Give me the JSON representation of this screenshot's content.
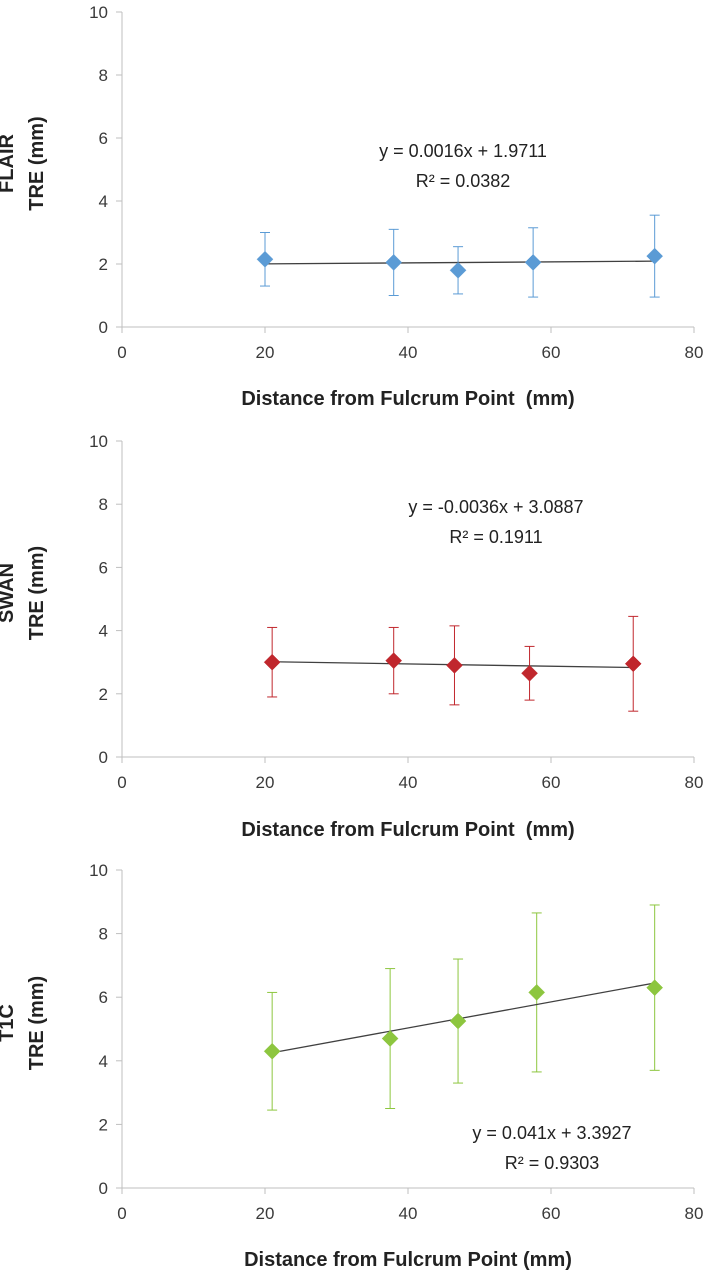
{
  "chart_data": [
    {
      "type": "scatter",
      "ylabel_lines": [
        "FLAIR",
        "TRE (mm)"
      ],
      "xlabel": "Distance from Fulcrum Point  (mm)",
      "xlim": [
        0,
        80
      ],
      "ylim": [
        0,
        10
      ],
      "xticks": [
        0,
        20,
        40,
        60,
        80
      ],
      "yticks": [
        0,
        2,
        4,
        6,
        8,
        10
      ],
      "color": "#5b9bd5",
      "points": [
        {
          "x": 20,
          "y": 2.15,
          "err": 0.85
        },
        {
          "x": 38,
          "y": 2.05,
          "err": 1.05
        },
        {
          "x": 47,
          "y": 1.8,
          "err": 0.75
        },
        {
          "x": 57.5,
          "y": 2.05,
          "err": 1.1
        },
        {
          "x": 74.5,
          "y": 2.25,
          "err": 1.3
        }
      ],
      "trendline": {
        "slope": 0.0016,
        "intercept": 1.9711,
        "x_range": [
          20,
          74.5
        ]
      },
      "equation": "y = 0.0016x + 1.9711",
      "r2": "R² = 0.0382",
      "annotation_pos": "center"
    },
    {
      "type": "scatter",
      "ylabel_lines": [
        "SWAN",
        "TRE (mm)"
      ],
      "xlabel": "Distance from Fulcrum Point  (mm)",
      "xlim": [
        0,
        80
      ],
      "ylim": [
        0,
        10
      ],
      "xticks": [
        0,
        20,
        40,
        60,
        80
      ],
      "yticks": [
        0,
        2,
        4,
        6,
        8,
        10
      ],
      "color": "#c0272d",
      "points": [
        {
          "x": 21,
          "y": 3.0,
          "err": 1.1
        },
        {
          "x": 38,
          "y": 3.05,
          "err": 1.05
        },
        {
          "x": 46.5,
          "y": 2.9,
          "err": 1.25
        },
        {
          "x": 57,
          "y": 2.65,
          "err": 0.85
        },
        {
          "x": 71.5,
          "y": 2.95,
          "err": 1.5
        }
      ],
      "trendline": {
        "slope": -0.0036,
        "intercept": 3.0887,
        "x_range": [
          21,
          71.5
        ]
      },
      "equation": "y = -0.0036x + 3.0887",
      "r2": "R² = 0.1911",
      "annotation_pos": "center-right"
    },
    {
      "type": "scatter",
      "ylabel_lines": [
        "T1C",
        "TRE (mm)"
      ],
      "xlabel": "Distance from Fulcrum Point (mm)",
      "xlim": [
        0,
        80
      ],
      "ylim": [
        0,
        10
      ],
      "xticks": [
        0,
        20,
        40,
        60,
        80
      ],
      "yticks": [
        0,
        2,
        4,
        6,
        8,
        10
      ],
      "color": "#8dc63f",
      "points": [
        {
          "x": 21,
          "y": 4.3,
          "err": 1.85
        },
        {
          "x": 37.5,
          "y": 4.7,
          "err": 2.2
        },
        {
          "x": 47,
          "y": 5.25,
          "err": 1.95
        },
        {
          "x": 58,
          "y": 6.15,
          "err": 2.5
        },
        {
          "x": 74.5,
          "y": 6.3,
          "err": 2.6
        }
      ],
      "trendline": {
        "slope": 0.041,
        "intercept": 3.3927,
        "x_range": [
          21,
          74.5
        ]
      },
      "equation": "y = 0.041x + 3.3927",
      "r2": "R² = 0.9303",
      "annotation_pos": "lower-right"
    }
  ]
}
